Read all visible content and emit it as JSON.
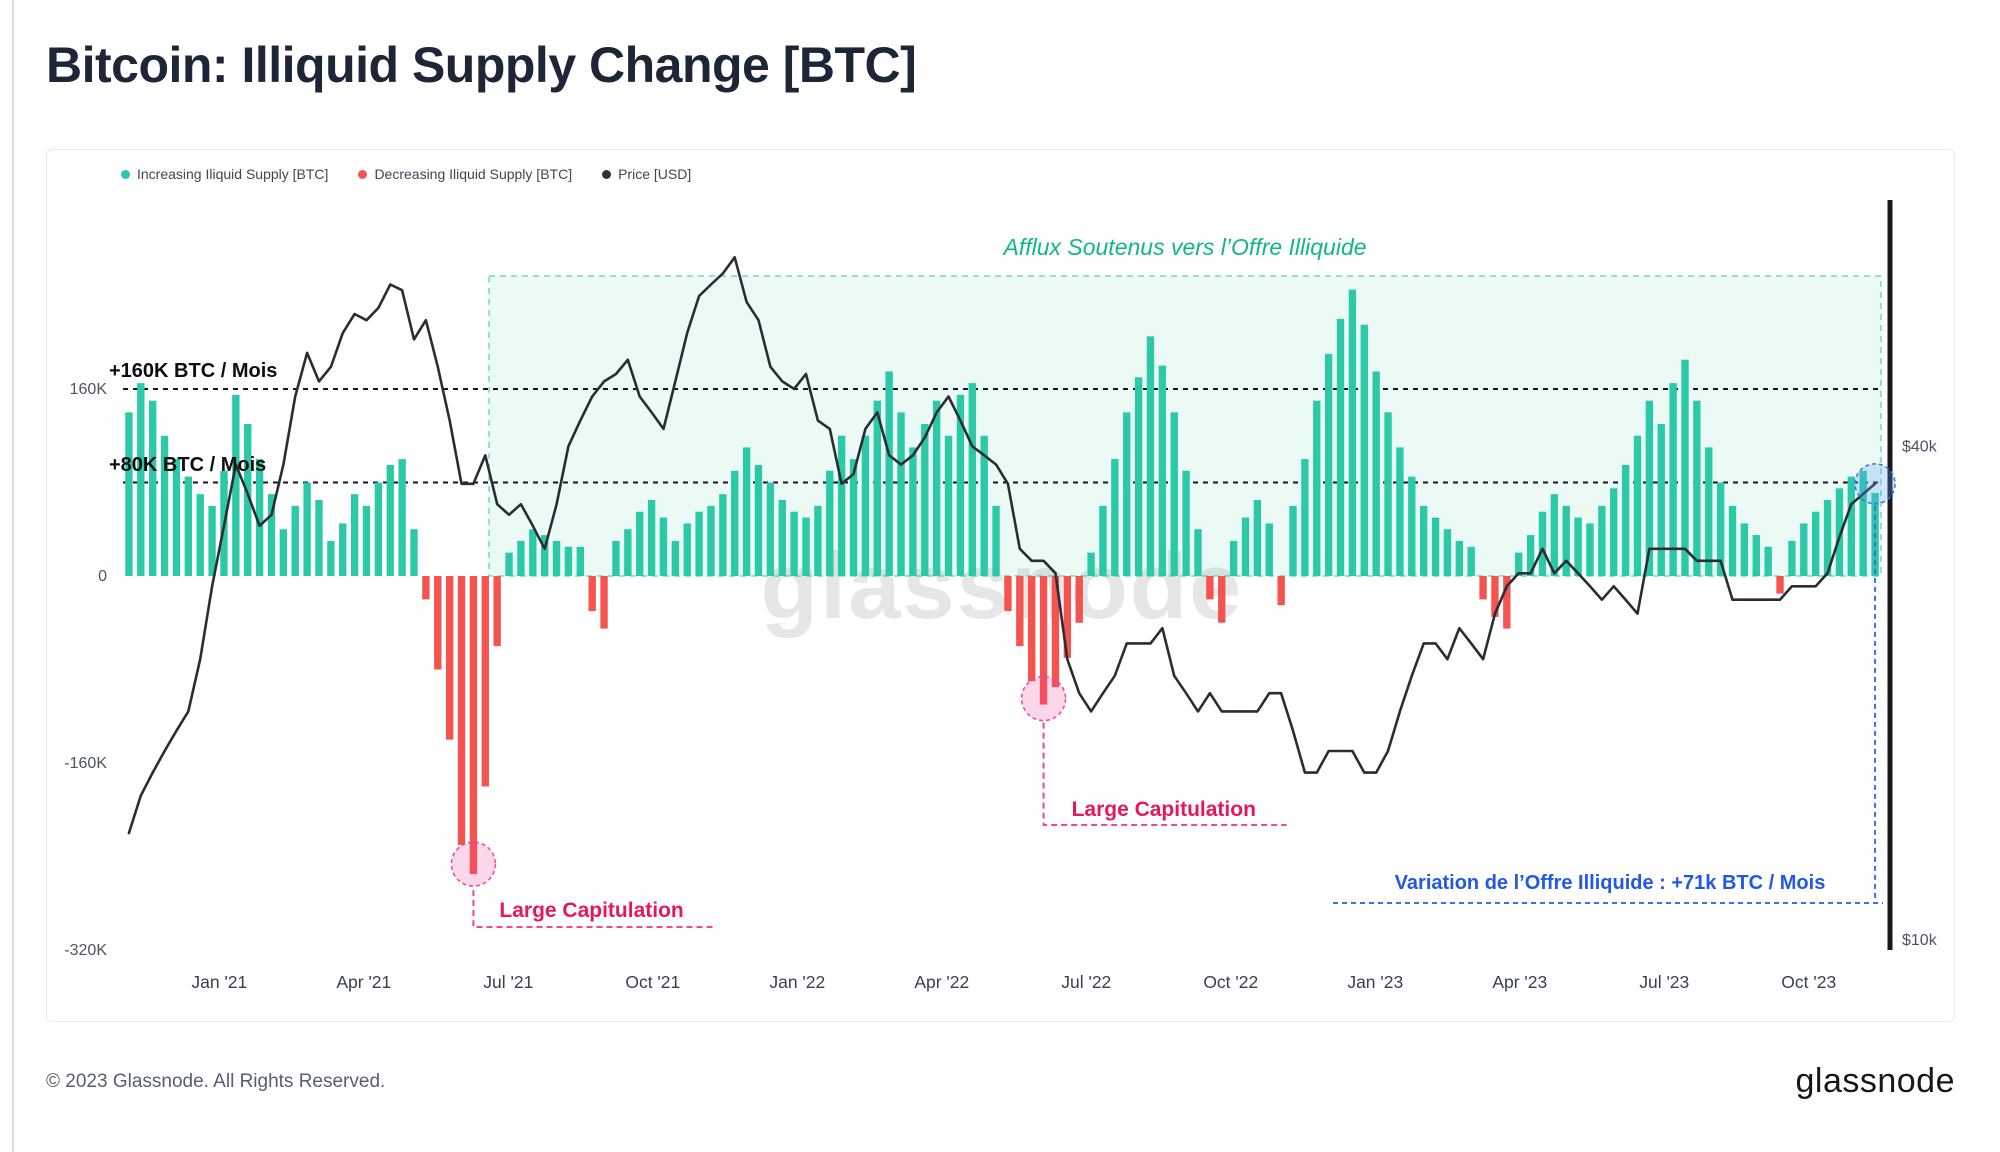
{
  "page": {
    "title": "Bitcoin: Illiquid Supply Change [BTC]",
    "watermark": "glassnode",
    "copyright": "© 2023 Glassnode. All Rights Reserved.",
    "logo_text": "glassnode"
  },
  "legend": [
    {
      "key": "increasing",
      "label": "Increasing Iliquid Supply [BTC]",
      "color": "#2bc9a7"
    },
    {
      "key": "decreasing",
      "label": "Decreasing Iliquid Supply [BTC]",
      "color": "#f5534f"
    },
    {
      "key": "price",
      "label": "Price [USD]",
      "color": "#2f3136"
    }
  ],
  "axes": {
    "x_ticks": [
      {
        "label": "Jan '21",
        "month": 2
      },
      {
        "label": "Apr '21",
        "month": 5
      },
      {
        "label": "Jul '21",
        "month": 8
      },
      {
        "label": "Oct '21",
        "month": 11
      },
      {
        "label": "Jan '22",
        "month": 14
      },
      {
        "label": "Apr '22",
        "month": 17
      },
      {
        "label": "Jul '22",
        "month": 20
      },
      {
        "label": "Oct '22",
        "month": 23
      },
      {
        "label": "Jan '23",
        "month": 26
      },
      {
        "label": "Apr '23",
        "month": 29
      },
      {
        "label": "Jul '23",
        "month": 32
      },
      {
        "label": "Oct '23",
        "month": 35
      }
    ],
    "months_total": 36.5
  },
  "chart_data": {
    "type": "bar+line",
    "title": "Bitcoin: Illiquid Supply Change [BTC]",
    "x_range": [
      "Nov 2020",
      "Nov 2023"
    ],
    "x_resolution": "weekly",
    "y_left_axis": {
      "unit": "BTC / month (thousands)",
      "ticks": [
        160,
        0,
        -160,
        -320
      ]
    },
    "y_right_axis": {
      "unit": "USD (thousands)",
      "scale": "log",
      "ticks": [
        40,
        10
      ]
    },
    "guides": [
      {
        "value": 160,
        "label": "+160K BTC / Mois"
      },
      {
        "value": 80,
        "label": "+80K BTC / Mois"
      }
    ],
    "highlight_region": {
      "label": "Afflux Soutenus vers l’Offre Illiquide",
      "start_month_index": 7.6,
      "color": "#10b981"
    },
    "events": [
      {
        "label": "Large Capitulation",
        "week_index": 29,
        "value": -255
      },
      {
        "label": "Large Capitulation",
        "week_index": 77,
        "value": -110
      },
      {
        "label": "Variation de l’Offre Illiquide : +71k BTC / Mois",
        "week_index": 147,
        "value": 71
      }
    ],
    "bar_series": {
      "name": "Illiquid Supply Change [BTC]",
      "unit": "K BTC / month",
      "positive_color": "#2bc9a7",
      "negative_color": "#f5534f",
      "values": [
        140,
        165,
        150,
        120,
        100,
        85,
        70,
        60,
        90,
        155,
        130,
        100,
        70,
        40,
        60,
        80,
        65,
        30,
        45,
        70,
        60,
        80,
        95,
        100,
        40,
        -20,
        -80,
        -140,
        -230,
        -255,
        -180,
        -60,
        20,
        30,
        40,
        35,
        30,
        25,
        25,
        -30,
        -45,
        30,
        40,
        55,
        65,
        50,
        30,
        45,
        55,
        60,
        70,
        90,
        110,
        95,
        80,
        65,
        55,
        50,
        60,
        90,
        120,
        100,
        120,
        150,
        175,
        140,
        110,
        130,
        150,
        120,
        155,
        165,
        120,
        60,
        -30,
        -60,
        -90,
        -110,
        -95,
        -70,
        -40,
        20,
        60,
        100,
        140,
        170,
        205,
        180,
        140,
        90,
        40,
        -20,
        -40,
        30,
        50,
        65,
        45,
        -25,
        60,
        100,
        150,
        190,
        220,
        245,
        215,
        175,
        140,
        110,
        85,
        60,
        50,
        40,
        30,
        25,
        -20,
        -35,
        -45,
        20,
        35,
        55,
        70,
        60,
        50,
        45,
        60,
        75,
        95,
        120,
        150,
        130,
        165,
        185,
        150,
        110,
        80,
        60,
        45,
        35,
        25,
        -15,
        30,
        45,
        55,
        65,
        75,
        85,
        90,
        71
      ]
    },
    "line_series": {
      "name": "Price [USD]",
      "unit": "K USD",
      "scale": "log",
      "color": "#2a2d33",
      "values": [
        13.5,
        15,
        16,
        17,
        18,
        19,
        22,
        27,
        32,
        38,
        35,
        32,
        33,
        38,
        46,
        52,
        48,
        50,
        55,
        58,
        57,
        59,
        63,
        62,
        54,
        57,
        50,
        43,
        36,
        36,
        39,
        34,
        33,
        34,
        32,
        30,
        34,
        40,
        43,
        46,
        48,
        49,
        51,
        46,
        44,
        42,
        48,
        55,
        61,
        63,
        65,
        68,
        60,
        57,
        50,
        48,
        47,
        49,
        43,
        42,
        36,
        37,
        42,
        44,
        39,
        38,
        39,
        41,
        44,
        46,
        43,
        40,
        39,
        38,
        36,
        30,
        29,
        29,
        28,
        22,
        20,
        19,
        20,
        21,
        23,
        23,
        23,
        24,
        21,
        20,
        19,
        20,
        19,
        19,
        19,
        19,
        20,
        20,
        18,
        16,
        16,
        17,
        17,
        17,
        16,
        16,
        17,
        19,
        21,
        23,
        23,
        22,
        24,
        23,
        22,
        25,
        27,
        28,
        28,
        30,
        28,
        29,
        28,
        27,
        26,
        27,
        26,
        25,
        30,
        30,
        30,
        30,
        29,
        29,
        29,
        26,
        26,
        26,
        26,
        26,
        27,
        27,
        27,
        28,
        31,
        34,
        35,
        36
      ]
    }
  }
}
